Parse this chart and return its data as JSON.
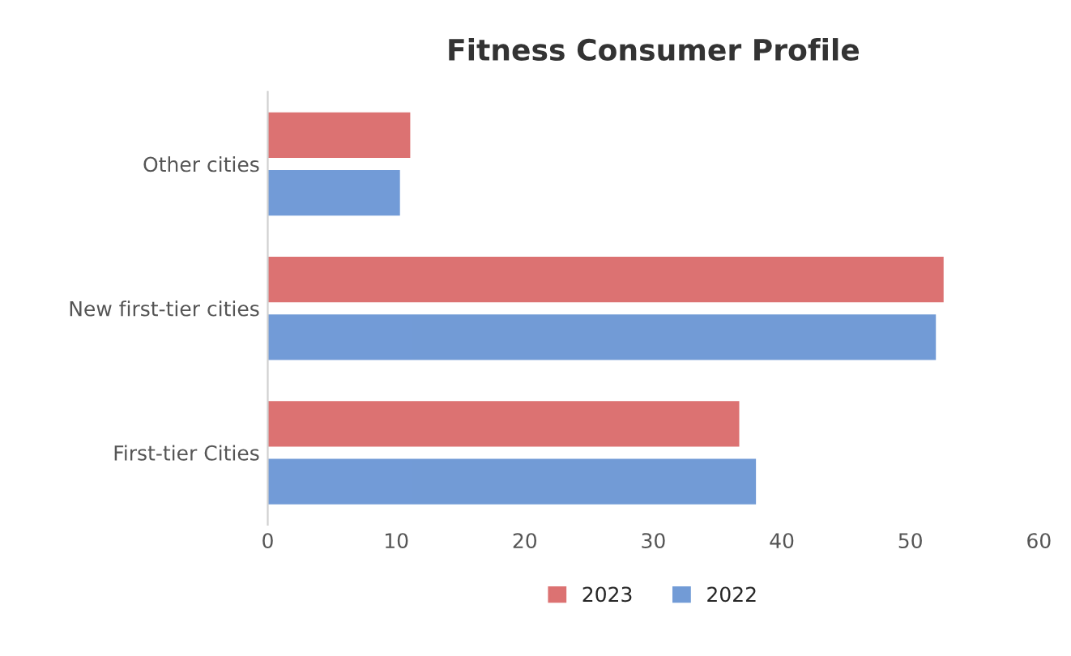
{
  "chart_data": {
    "type": "bar",
    "orientation": "horizontal",
    "title": "Fitness Consumer Profile",
    "categories": [
      "Other cities",
      "New first-tier cities",
      "First-tier Cities"
    ],
    "series": [
      {
        "name": "2023",
        "color": "#d65a5a",
        "values": [
          11.0,
          52.5,
          36.6
        ]
      },
      {
        "name": "2022",
        "color": "#5a8ad0",
        "values": [
          10.2,
          51.9,
          37.9
        ]
      }
    ],
    "xlim": [
      0,
      60
    ],
    "xticks": [
      0,
      10,
      20,
      30,
      40,
      50,
      60
    ],
    "grid": false,
    "legend": "bottom"
  }
}
